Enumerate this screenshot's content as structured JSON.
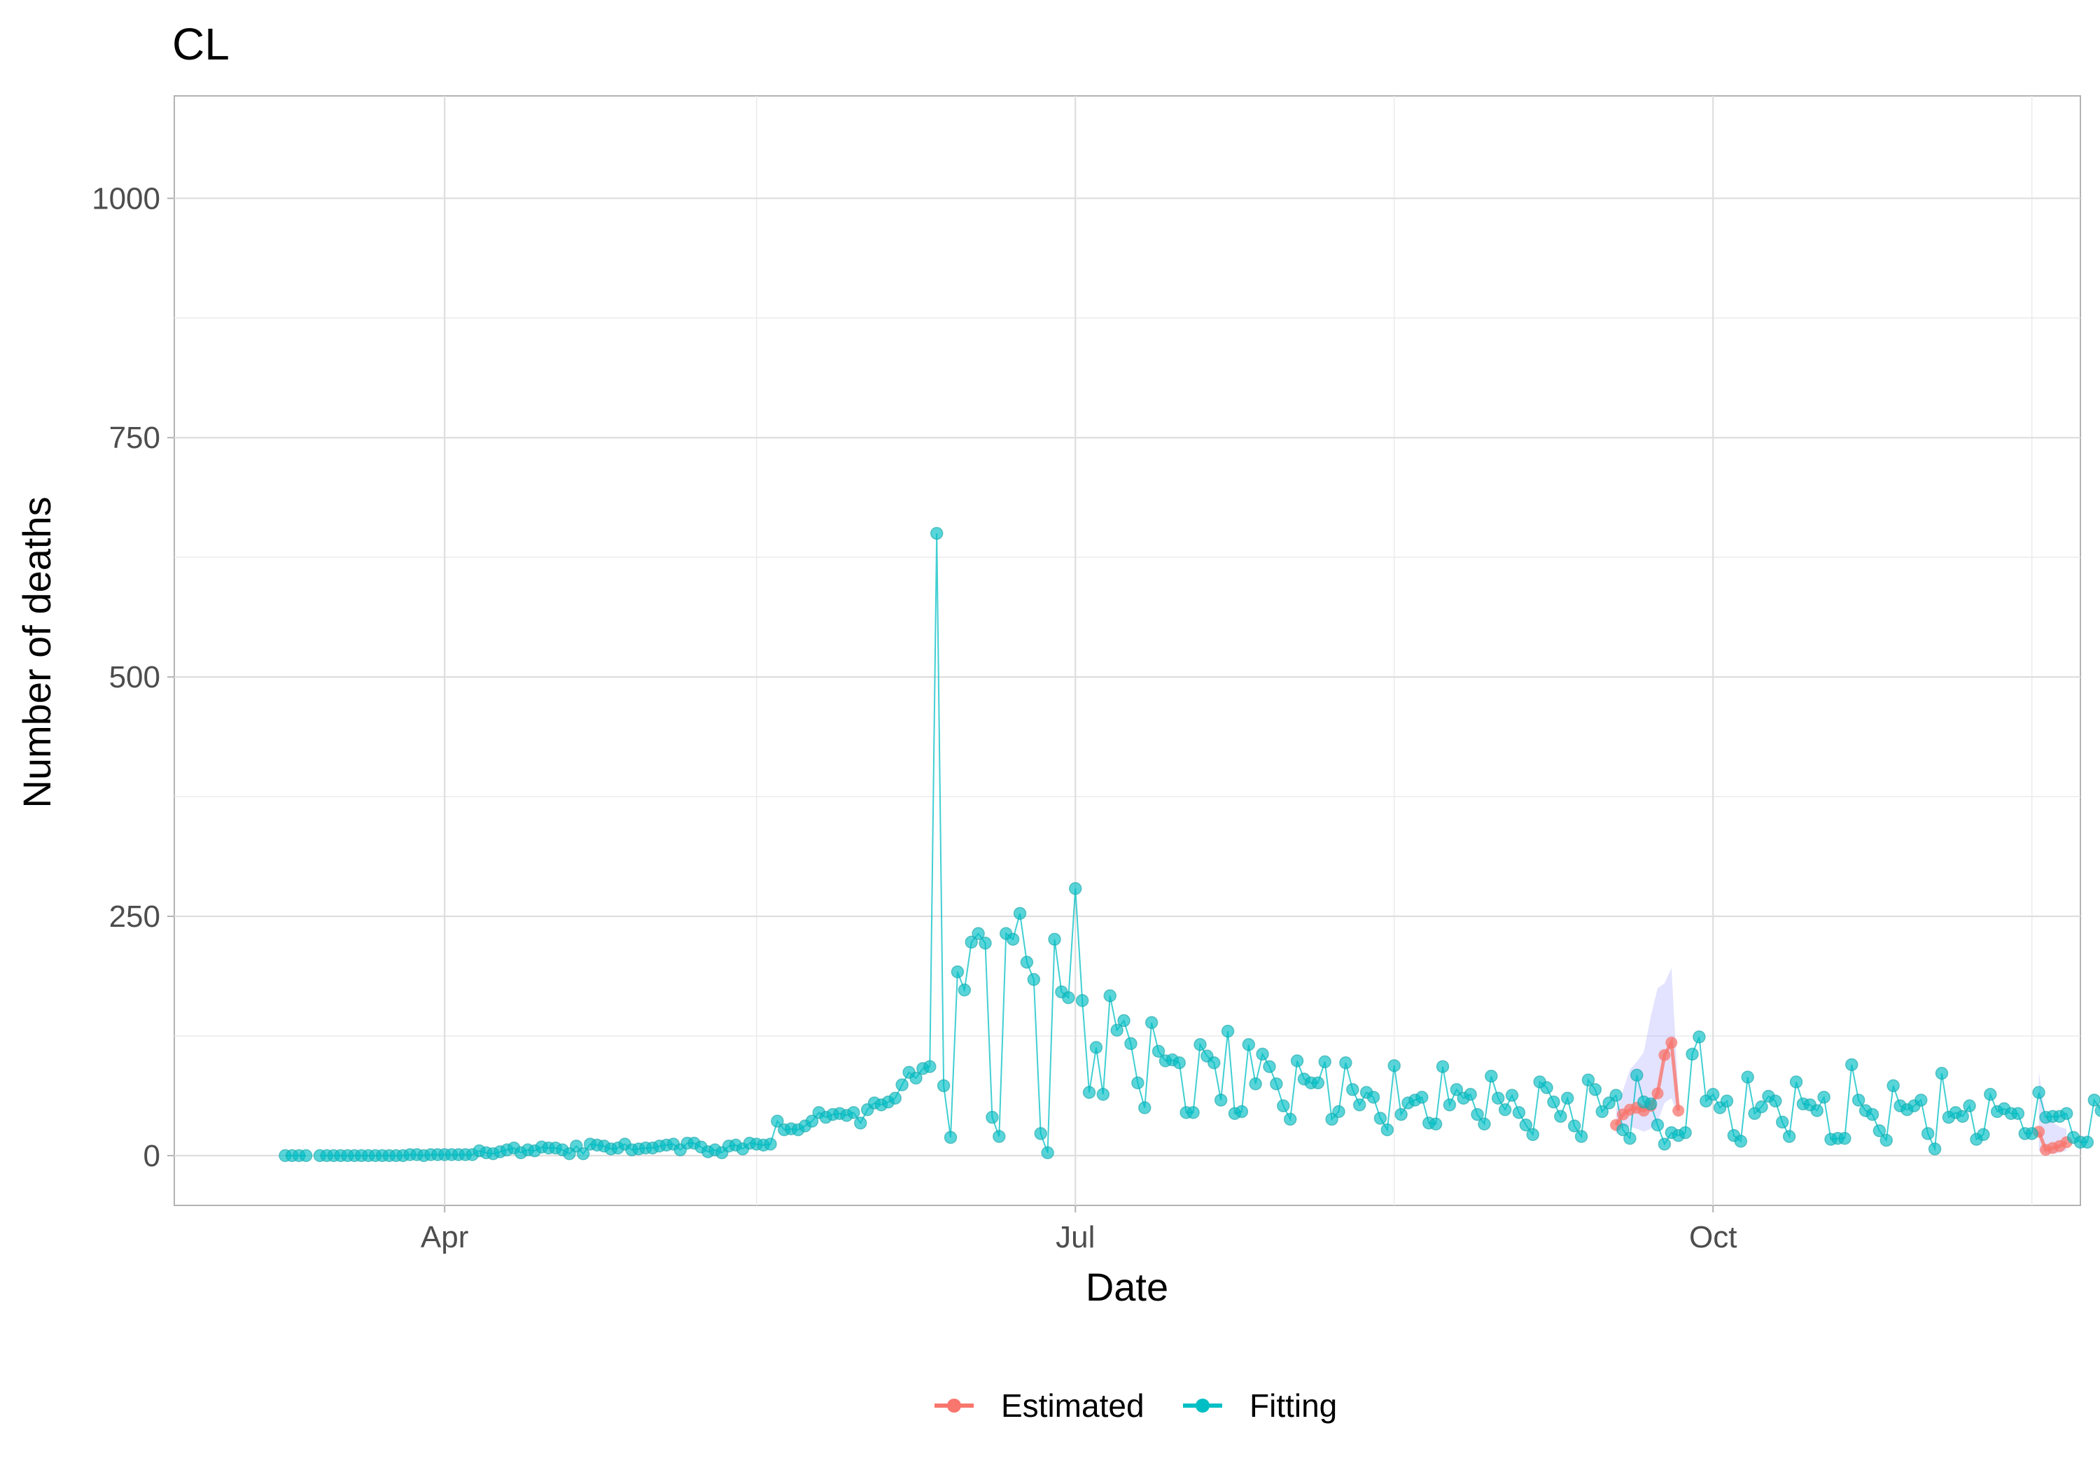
{
  "chart_data": {
    "type": "line",
    "title": "CL",
    "xlabel": "Date",
    "ylabel": "Number of  deaths",
    "x_tick_labels": [
      "Apr",
      "Jul",
      "Oct"
    ],
    "x_tick_dates": [
      "2020-04-01",
      "2020-07-01",
      "2020-10-01"
    ],
    "x_minor_dates": [
      "2020-05-16",
      "2020-08-16",
      "2020-11-16"
    ],
    "y_ticks": [
      0,
      250,
      500,
      750,
      1000
    ],
    "ylim": [
      -52,
      1107
    ],
    "xlim": [
      "2020-02-22",
      "2020-11-23"
    ],
    "grid": true,
    "legend_position": "bottom",
    "colors": {
      "Estimated": "#f8766d",
      "Fitting": "#00bfc4",
      "ribbon": "#6666ff"
    },
    "series": [
      {
        "name": "Fitting",
        "x_start": "2020-03-09",
        "values": [
          0,
          0,
          0,
          0,
          null,
          0,
          0,
          0,
          0,
          0,
          0,
          0,
          0,
          0,
          0,
          0,
          0,
          0,
          1,
          1,
          0,
          1,
          1,
          1,
          1,
          1,
          1,
          1,
          5,
          3,
          2,
          4,
          6,
          8,
          3,
          6,
          5,
          9,
          8,
          8,
          6,
          2,
          10,
          2,
          12,
          11,
          10,
          7,
          8,
          12,
          6,
          7,
          8,
          8,
          10,
          11,
          12,
          6,
          13,
          13,
          9,
          4,
          6,
          3,
          10,
          11,
          7,
          13,
          12,
          11,
          12,
          36,
          27,
          28,
          27,
          31,
          36,
          45,
          40,
          43,
          44,
          42,
          45,
          34,
          48,
          55,
          53,
          56,
          60,
          74,
          87,
          81,
          91,
          93,
          650,
          73,
          19,
          192,
          173,
          223,
          232,
          222,
          40,
          20,
          232,
          226,
          253,
          202,
          184,
          23,
          3,
          226,
          171,
          165,
          279,
          162,
          66,
          113,
          64,
          167,
          131,
          141,
          117,
          76,
          50,
          139,
          109,
          99,
          100,
          97,
          45,
          45,
          116,
          104,
          97,
          58,
          130,
          44,
          46,
          116,
          75,
          106,
          93,
          75,
          52,
          38,
          99,
          80,
          76,
          76,
          98,
          38,
          46,
          97,
          69,
          53,
          66,
          61,
          39,
          27,
          94,
          43,
          55,
          58,
          61,
          34,
          33,
          93,
          53,
          69,
          60,
          64,
          43,
          33,
          83,
          60,
          48,
          63,
          45,
          32,
          22,
          77,
          71,
          56,
          41,
          60,
          31,
          20,
          79,
          69,
          46,
          55,
          63,
          27,
          18,
          84,
          56,
          54,
          32,
          12,
          24,
          21,
          24,
          106,
          124,
          57,
          64,
          50,
          57,
          21,
          15,
          82,
          44,
          51,
          62,
          57,
          35,
          20,
          77,
          54,
          53,
          47,
          61,
          17,
          18,
          18,
          95,
          58,
          47,
          43,
          26,
          16,
          73,
          52,
          48,
          52,
          58,
          23,
          7,
          86,
          40,
          45,
          41,
          52,
          17,
          22,
          64,
          46,
          49,
          44,
          44,
          23,
          23,
          66,
          40,
          41,
          41,
          44,
          19,
          14,
          14,
          58,
          47,
          28,
          41,
          38,
          26
        ]
      },
      {
        "name": "Estimated",
        "segments": [
          {
            "x_start": "2020-09-17",
            "values": [
              32,
              43,
              48,
              50,
              47,
              52,
              65,
              105,
              118,
              47
            ]
          },
          {
            "x_start": "2020-11-17",
            "values": [
              25,
              6,
              8,
              10,
              14
            ]
          }
        ],
        "ribbon": [
          {
            "x_start": "2020-09-17",
            "lower": [
              22,
              30,
              30,
              28,
              25,
              28,
              35,
              55,
              60,
              40
            ],
            "upper": [
              48,
              68,
              90,
              98,
              108,
              145,
              175,
              180,
              196,
              65
            ]
          },
          {
            "x_start": "2020-11-17",
            "lower": [
              5,
              2,
              2,
              3,
              5
            ],
            "upper": [
              88,
              40,
              35,
              30,
              28
            ]
          }
        ]
      }
    ]
  }
}
